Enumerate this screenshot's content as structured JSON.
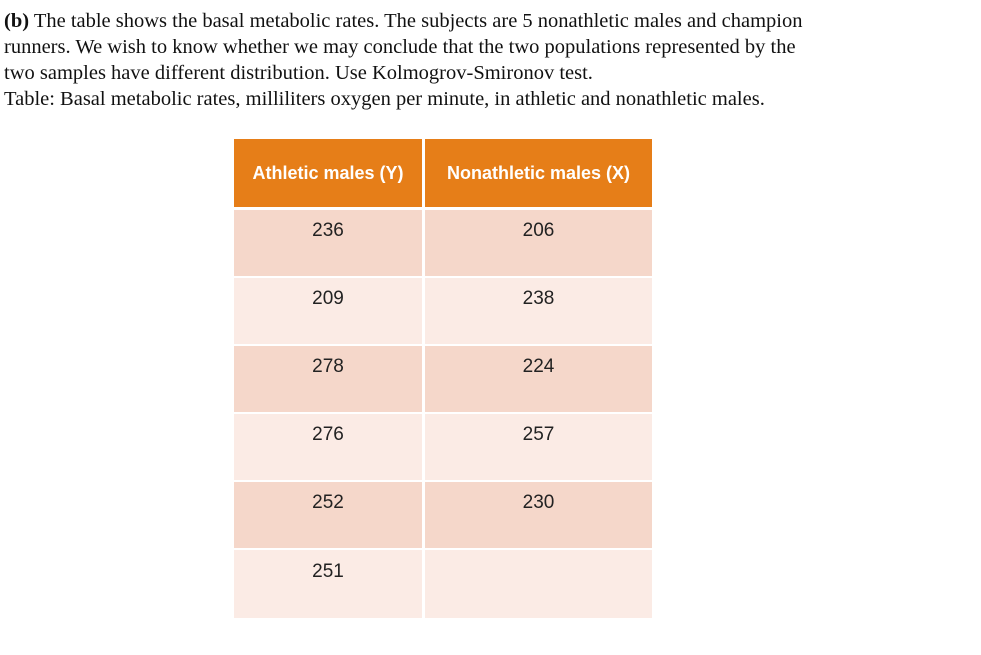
{
  "problem": {
    "label": "(b)",
    "lines": [
      " The table shows the basal metabolic rates. The subjects are 5 nonathletic males and champion",
      "runners. We wish to know whether we may conclude that the two populations represented by the",
      "two samples have different distribution. Use Kolmogrov-Smironov test.",
      "Table: Basal metabolic rates, milliliters oxygen per minute, in athletic and nonathletic males."
    ]
  },
  "table": {
    "headers": [
      "Athletic males (Y)",
      "Nonathletic males (X)"
    ],
    "rows": [
      [
        "236",
        "206"
      ],
      [
        "209",
        "238"
      ],
      [
        "278",
        "224"
      ],
      [
        "276",
        "257"
      ],
      [
        "252",
        "230"
      ],
      [
        "251",
        ""
      ]
    ]
  }
}
